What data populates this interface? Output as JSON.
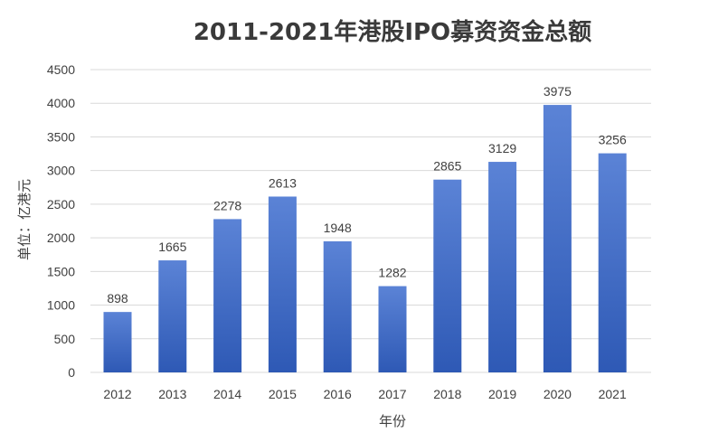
{
  "chart_data": {
    "type": "bar",
    "title": "2011-2021年港股IPO募资资金总额",
    "xlabel": "年份",
    "ylabel": "单位：亿港元",
    "categories": [
      "2012",
      "2013",
      "2014",
      "2015",
      "2016",
      "2017",
      "2018",
      "2019",
      "2020",
      "2021"
    ],
    "values": [
      898,
      1665,
      2278,
      2613,
      1948,
      1282,
      2865,
      3129,
      3975,
      3256
    ],
    "ylim": [
      0,
      4500
    ],
    "yticks": [
      0,
      500,
      1000,
      1500,
      2000,
      2500,
      3000,
      3500,
      4000,
      4500
    ],
    "grid": true,
    "legend": "none",
    "bar_color_top": "#5b83d6",
    "bar_color_bottom": "#2e59b5",
    "data_labels": true
  }
}
